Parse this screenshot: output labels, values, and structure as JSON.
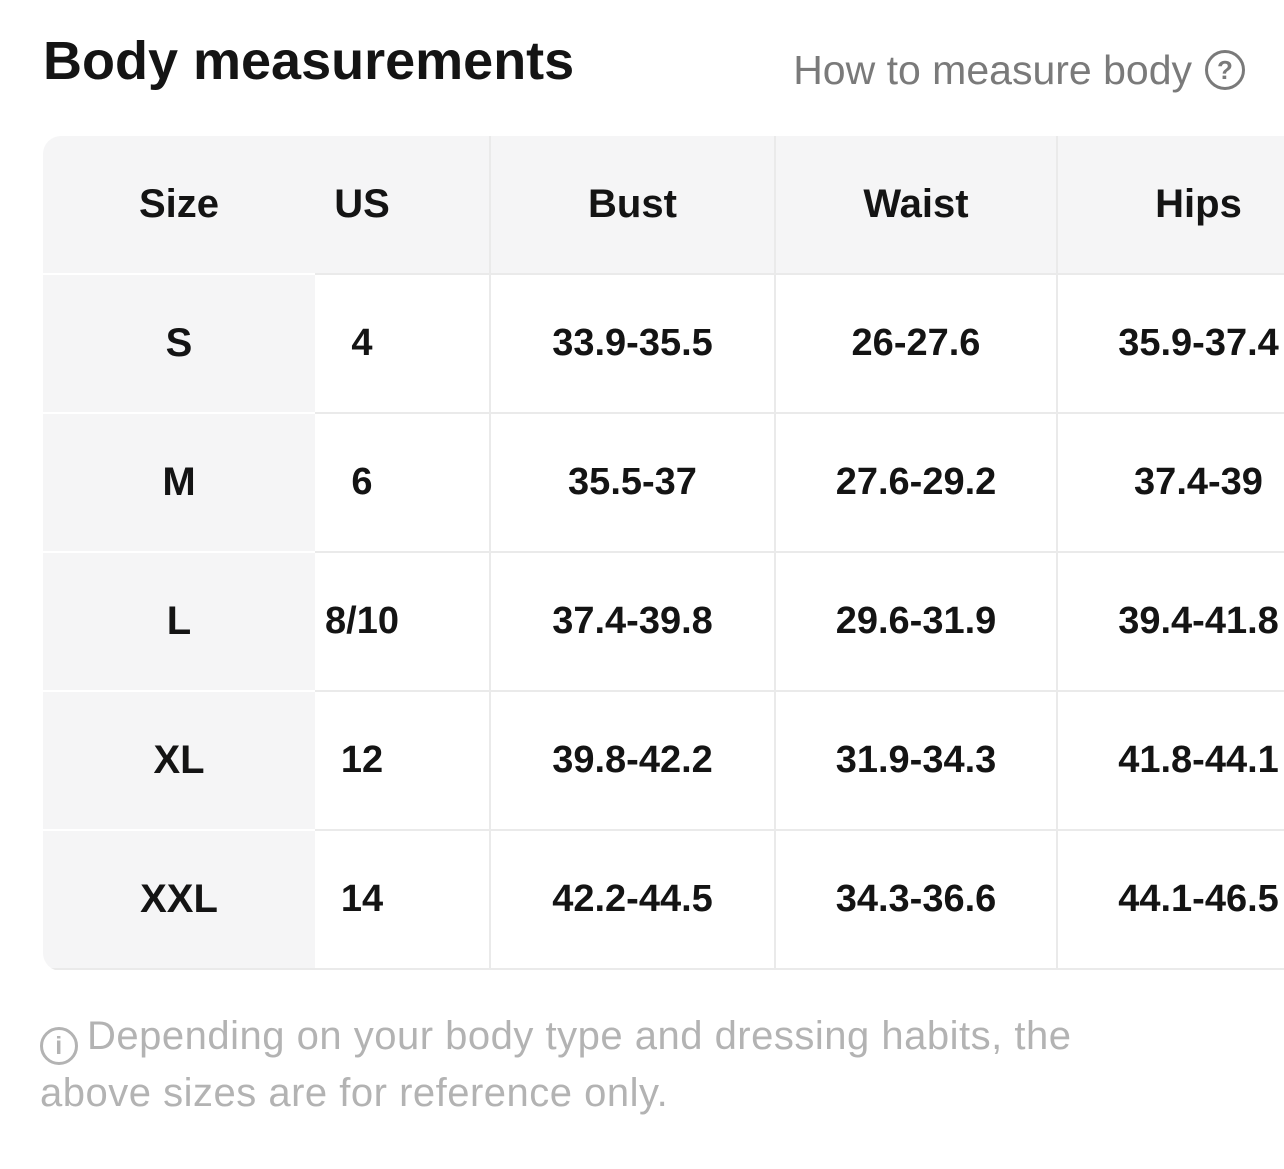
{
  "header": {
    "title": "Body measurements",
    "help_link": {
      "label": "How to measure body",
      "icon": "question-circle",
      "icon_glyph": "?"
    }
  },
  "table": {
    "columns": [
      "Size",
      "US",
      "Bust",
      "Waist",
      "Hips"
    ],
    "rows": [
      {
        "size": "S",
        "us": "4",
        "bust": "33.9-35.5",
        "waist": "26-27.6",
        "hips": "35.9-37.4"
      },
      {
        "size": "M",
        "us": "6",
        "bust": "35.5-37",
        "waist": "27.6-29.2",
        "hips": "37.4-39"
      },
      {
        "size": "L",
        "us": "8/10",
        "bust": "37.4-39.8",
        "waist": "29.6-31.9",
        "hips": "39.4-41.8"
      },
      {
        "size": "XL",
        "us": "12",
        "bust": "39.8-42.2",
        "waist": "31.9-34.3",
        "hips": "41.8-44.1"
      },
      {
        "size": "XXL",
        "us": "14",
        "bust": "42.2-44.5",
        "waist": "34.3-36.6",
        "hips": "44.1-46.5"
      }
    ]
  },
  "footnote": {
    "icon": "info-circle",
    "icon_glyph": "i",
    "lines": [
      "Depending on your body type and dressing habits, the",
      "above sizes are for reference only."
    ]
  },
  "colors": {
    "text": "#141414",
    "muted_text": "#7a7a7a",
    "faint_text": "#b3b3b3",
    "table_header_bg": "#f5f5f6",
    "divider": "#eaeaea"
  }
}
